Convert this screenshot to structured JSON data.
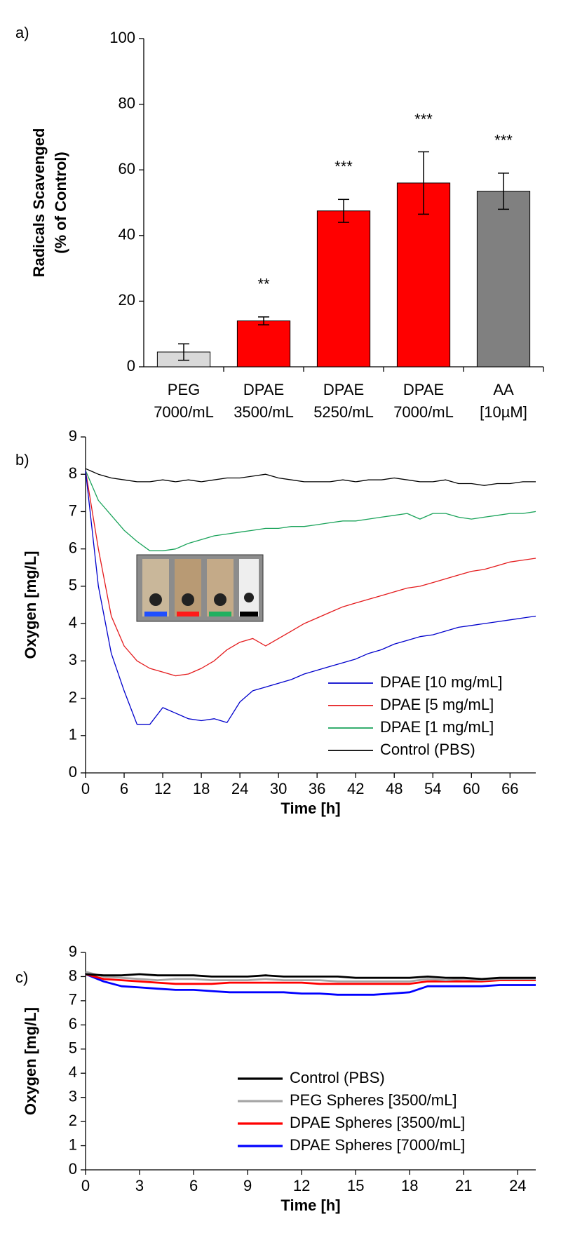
{
  "chart_data": [
    {
      "type": "bar",
      "panel": "a)",
      "ylabel": [
        "Radicals Scavenged",
        "(% of Control)"
      ],
      "categories": [
        [
          "PEG",
          "7000/mL"
        ],
        [
          "DPAE",
          "3500/mL"
        ],
        [
          "DPAE",
          "5250/mL"
        ],
        [
          "DPAE",
          "7000/mL"
        ],
        [
          "AA",
          "[10µM]"
        ]
      ],
      "values": [
        4.5,
        14,
        47.5,
        56,
        53.5
      ],
      "errors": [
        2.5,
        1.2,
        3.5,
        9.5,
        5.5
      ],
      "annotations": [
        null,
        "**",
        "***",
        "***",
        "***"
      ],
      "colors": [
        "#d9d9d9",
        "#ff0000",
        "#ff0000",
        "#ff0000",
        "#808080"
      ],
      "ylim": [
        0,
        100
      ],
      "yticks": [
        0,
        20,
        40,
        60,
        80,
        100
      ]
    },
    {
      "type": "line",
      "panel": "b)",
      "ylabel": "Oxygen [mg/L]",
      "xlabel": "Time [h]",
      "x": [
        0,
        2,
        4,
        6,
        8,
        10,
        12,
        14,
        16,
        18,
        20,
        22,
        24,
        26,
        28,
        30,
        32,
        34,
        36,
        38,
        40,
        42,
        44,
        46,
        48,
        50,
        52,
        54,
        56,
        58,
        60,
        62,
        64,
        66,
        68,
        70
      ],
      "series": [
        {
          "name": "DPAE [10 mg/mL]",
          "color": "#0000cc",
          "values": [
            8.1,
            5.0,
            3.2,
            2.2,
            1.3,
            1.3,
            1.75,
            1.6,
            1.45,
            1.4,
            1.45,
            1.35,
            1.9,
            2.2,
            2.3,
            2.4,
            2.5,
            2.65,
            2.75,
            2.85,
            2.95,
            3.05,
            3.2,
            3.3,
            3.45,
            3.55,
            3.65,
            3.7,
            3.8,
            3.9,
            3.95,
            4.0,
            4.05,
            4.1,
            4.15,
            4.2
          ]
        },
        {
          "name": "DPAE [5 mg/mL]",
          "color": "#e41a1c",
          "values": [
            8.1,
            6.0,
            4.2,
            3.4,
            3.0,
            2.8,
            2.7,
            2.6,
            2.65,
            2.8,
            3.0,
            3.3,
            3.5,
            3.6,
            3.4,
            3.6,
            3.8,
            4.0,
            4.15,
            4.3,
            4.45,
            4.55,
            4.65,
            4.75,
            4.85,
            4.95,
            5.0,
            5.1,
            5.2,
            5.3,
            5.4,
            5.45,
            5.55,
            5.65,
            5.7,
            5.75
          ]
        },
        {
          "name": "DPAE [1 mg/mL]",
          "color": "#1aa35a",
          "values": [
            8.1,
            7.3,
            6.9,
            6.5,
            6.2,
            5.95,
            5.95,
            6.0,
            6.15,
            6.25,
            6.35,
            6.4,
            6.45,
            6.5,
            6.55,
            6.55,
            6.6,
            6.6,
            6.65,
            6.7,
            6.75,
            6.75,
            6.8,
            6.85,
            6.9,
            6.95,
            6.8,
            6.95,
            6.95,
            6.85,
            6.8,
            6.85,
            6.9,
            6.95,
            6.95,
            7.0
          ]
        },
        {
          "name": "Control (PBS)",
          "color": "#000000",
          "values": [
            8.15,
            8.0,
            7.9,
            7.85,
            7.8,
            7.8,
            7.85,
            7.8,
            7.85,
            7.8,
            7.85,
            7.9,
            7.9,
            7.95,
            8.0,
            7.9,
            7.85,
            7.8,
            7.8,
            7.8,
            7.85,
            7.8,
            7.85,
            7.85,
            7.9,
            7.85,
            7.8,
            7.8,
            7.85,
            7.75,
            7.75,
            7.7,
            7.75,
            7.75,
            7.8,
            7.8
          ]
        }
      ],
      "xlim": [
        0,
        70
      ],
      "xticks": [
        0,
        6,
        12,
        18,
        24,
        30,
        36,
        42,
        48,
        54,
        60,
        66
      ],
      "ylim": [
        0,
        9
      ],
      "yticks": [
        0,
        1,
        2,
        3,
        4,
        5,
        6,
        7,
        8,
        9
      ],
      "legend": "lower right"
    },
    {
      "type": "line",
      "panel": "c)",
      "ylabel": "Oxygen [mg/L]",
      "xlabel": "Time [h]",
      "x": [
        0,
        1,
        2,
        3,
        4,
        5,
        6,
        7,
        8,
        9,
        10,
        11,
        12,
        13,
        14,
        15,
        16,
        17,
        18,
        19,
        20,
        21,
        22,
        23,
        24,
        25
      ],
      "series": [
        {
          "name": "Control (PBS)",
          "color": "#000000",
          "values": [
            8.1,
            8.05,
            8.05,
            8.1,
            8.05,
            8.05,
            8.05,
            8.0,
            8.0,
            8.0,
            8.05,
            8.0,
            8.0,
            8.0,
            8.0,
            7.95,
            7.95,
            7.95,
            7.95,
            8.0,
            7.95,
            7.95,
            7.9,
            7.95,
            7.95,
            7.95
          ]
        },
        {
          "name": "PEG Spheres [3500/mL]",
          "color": "#a6a6a6",
          "values": [
            8.2,
            8.0,
            7.95,
            7.9,
            7.85,
            7.9,
            7.9,
            7.85,
            7.85,
            7.85,
            7.9,
            7.85,
            7.85,
            7.85,
            7.8,
            7.8,
            7.8,
            7.8,
            7.8,
            7.9,
            7.85,
            7.9,
            7.85,
            7.9,
            7.9,
            7.9
          ]
        },
        {
          "name": "DPAE Spheres [3500/mL]",
          "color": "#ff0000",
          "values": [
            8.1,
            7.9,
            7.85,
            7.8,
            7.75,
            7.7,
            7.7,
            7.7,
            7.75,
            7.75,
            7.75,
            7.75,
            7.75,
            7.7,
            7.7,
            7.7,
            7.7,
            7.7,
            7.7,
            7.8,
            7.8,
            7.8,
            7.8,
            7.85,
            7.85,
            7.85
          ]
        },
        {
          "name": "DPAE Spheres [7000/mL]",
          "color": "#0000ff",
          "values": [
            8.1,
            7.8,
            7.6,
            7.55,
            7.5,
            7.45,
            7.45,
            7.4,
            7.35,
            7.35,
            7.35,
            7.35,
            7.3,
            7.3,
            7.25,
            7.25,
            7.25,
            7.3,
            7.35,
            7.6,
            7.6,
            7.6,
            7.6,
            7.65,
            7.65,
            7.65
          ]
        }
      ],
      "xlim": [
        0,
        25
      ],
      "xticks": [
        0,
        3,
        6,
        9,
        12,
        15,
        18,
        21,
        24
      ],
      "ylim": [
        0,
        9
      ],
      "yticks": [
        0,
        1,
        2,
        3,
        4,
        5,
        6,
        7,
        8,
        9
      ],
      "legend": "lower right"
    }
  ]
}
